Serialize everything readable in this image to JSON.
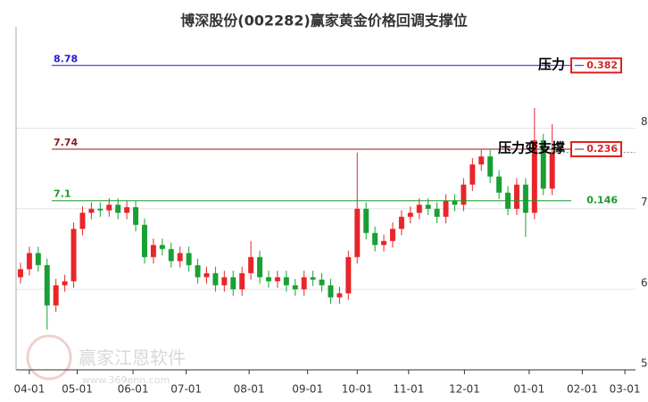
{
  "chart_data": {
    "type": "candlestick",
    "title": "博深股份(002282)赢家黄金价格回调支撑位",
    "watermark": "赢家江恩软件",
    "watermark_url": "www.369enn.com",
    "up_color": "#e8262a",
    "down_color": "#18a034",
    "grid": true,
    "xlim": [
      -0.5,
      69.4
    ],
    "xticks": [
      {
        "value": 1.0,
        "label": "04-01"
      },
      {
        "value": 6.4,
        "label": "05-01"
      },
      {
        "value": 12.7,
        "label": "06-01"
      },
      {
        "value": 18.7,
        "label": "07-01"
      },
      {
        "value": 25.8,
        "label": "08-01"
      },
      {
        "value": 32.4,
        "label": "09-01"
      },
      {
        "value": 38.0,
        "label": "10-01"
      },
      {
        "value": 43.8,
        "label": "11-01"
      },
      {
        "value": 50.1,
        "label": "12-01"
      },
      {
        "value": 57.4,
        "label": "01-01"
      },
      {
        "value": 63.4,
        "label": "02-01"
      },
      {
        "value": 68.2,
        "label": "03-01"
      }
    ],
    "ylim": [
      5.0,
      9.26
    ],
    "yticks": [
      5,
      6,
      7,
      8
    ],
    "open": [
      6.15,
      6.25,
      6.45,
      6.3,
      5.8,
      6.05,
      6.1,
      6.75,
      6.95,
      7.0,
      6.98,
      7.05,
      6.95,
      7.02,
      6.8,
      6.4,
      6.55,
      6.5,
      6.35,
      6.45,
      6.3,
      6.15,
      6.2,
      6.05,
      6.15,
      6.0,
      6.2,
      6.4,
      6.15,
      6.1,
      6.15,
      6.05,
      6.0,
      6.15,
      6.12,
      6.05,
      5.9,
      5.95,
      6.4,
      7.0,
      6.7,
      6.55,
      6.6,
      6.75,
      6.9,
      6.95,
      7.05,
      7.0,
      6.9,
      7.1,
      7.05,
      7.3,
      7.55,
      7.65,
      7.4,
      7.2,
      7.0,
      7.3,
      6.95,
      7.85,
      7.25
    ],
    "high": [
      6.33,
      6.53,
      6.53,
      6.38,
      6.13,
      6.18,
      6.83,
      7.03,
      7.08,
      7.08,
      7.13,
      7.13,
      7.1,
      7.1,
      6.88,
      6.63,
      6.63,
      6.58,
      6.53,
      6.53,
      6.38,
      6.28,
      6.28,
      6.23,
      6.23,
      6.28,
      6.6,
      6.48,
      6.23,
      6.23,
      6.23,
      6.13,
      6.23,
      6.23,
      6.2,
      6.13,
      6.03,
      6.48,
      7.7,
      7.08,
      6.78,
      6.68,
      6.83,
      6.98,
      7.03,
      7.13,
      7.13,
      7.08,
      7.18,
      7.18,
      7.38,
      7.63,
      7.73,
      7.73,
      7.48,
      7.28,
      7.38,
      7.38,
      8.25,
      7.93,
      8.05
    ],
    "low": [
      6.07,
      6.17,
      6.22,
      5.5,
      5.72,
      5.97,
      6.02,
      6.67,
      6.87,
      6.9,
      6.9,
      6.87,
      6.87,
      6.72,
      6.32,
      6.32,
      6.42,
      6.27,
      6.27,
      6.22,
      6.07,
      6.07,
      5.97,
      5.97,
      5.92,
      5.92,
      6.12,
      6.07,
      6.02,
      6.02,
      5.97,
      5.92,
      5.92,
      6.04,
      5.97,
      5.82,
      5.82,
      5.87,
      6.32,
      6.62,
      6.47,
      6.47,
      6.52,
      6.67,
      6.82,
      6.87,
      6.92,
      6.82,
      6.82,
      6.97,
      6.97,
      7.22,
      7.47,
      7.32,
      7.12,
      6.92,
      6.92,
      6.65,
      6.87,
      7.17,
      7.17
    ],
    "close": [
      6.25,
      6.45,
      6.3,
      5.8,
      6.05,
      6.1,
      6.75,
      6.95,
      7.0,
      6.98,
      7.05,
      6.95,
      7.02,
      6.8,
      6.4,
      6.55,
      6.5,
      6.35,
      6.45,
      6.3,
      6.15,
      6.2,
      6.05,
      6.15,
      6.0,
      6.2,
      6.4,
      6.15,
      6.1,
      6.15,
      6.05,
      6.0,
      6.15,
      6.12,
      6.05,
      5.9,
      5.95,
      6.4,
      7.0,
      6.7,
      6.55,
      6.6,
      6.75,
      6.9,
      6.95,
      7.05,
      7.0,
      6.9,
      7.1,
      7.05,
      7.3,
      7.55,
      7.65,
      7.4,
      7.2,
      7.0,
      7.3,
      6.95,
      7.85,
      7.25,
      7.7
    ],
    "levels": [
      {
        "value": 8.78,
        "ratio": 0.382,
        "note": "压力",
        "color": "#1c1cd8",
        "boxed": true
      },
      {
        "value": 7.74,
        "ratio": 0.236,
        "note": "压力变支撑",
        "color": "#8b1a1a",
        "boxed": true
      },
      {
        "value": 7.1,
        "ratio": 0.146,
        "color": "#1a9a2a",
        "boxed": false
      }
    ]
  }
}
